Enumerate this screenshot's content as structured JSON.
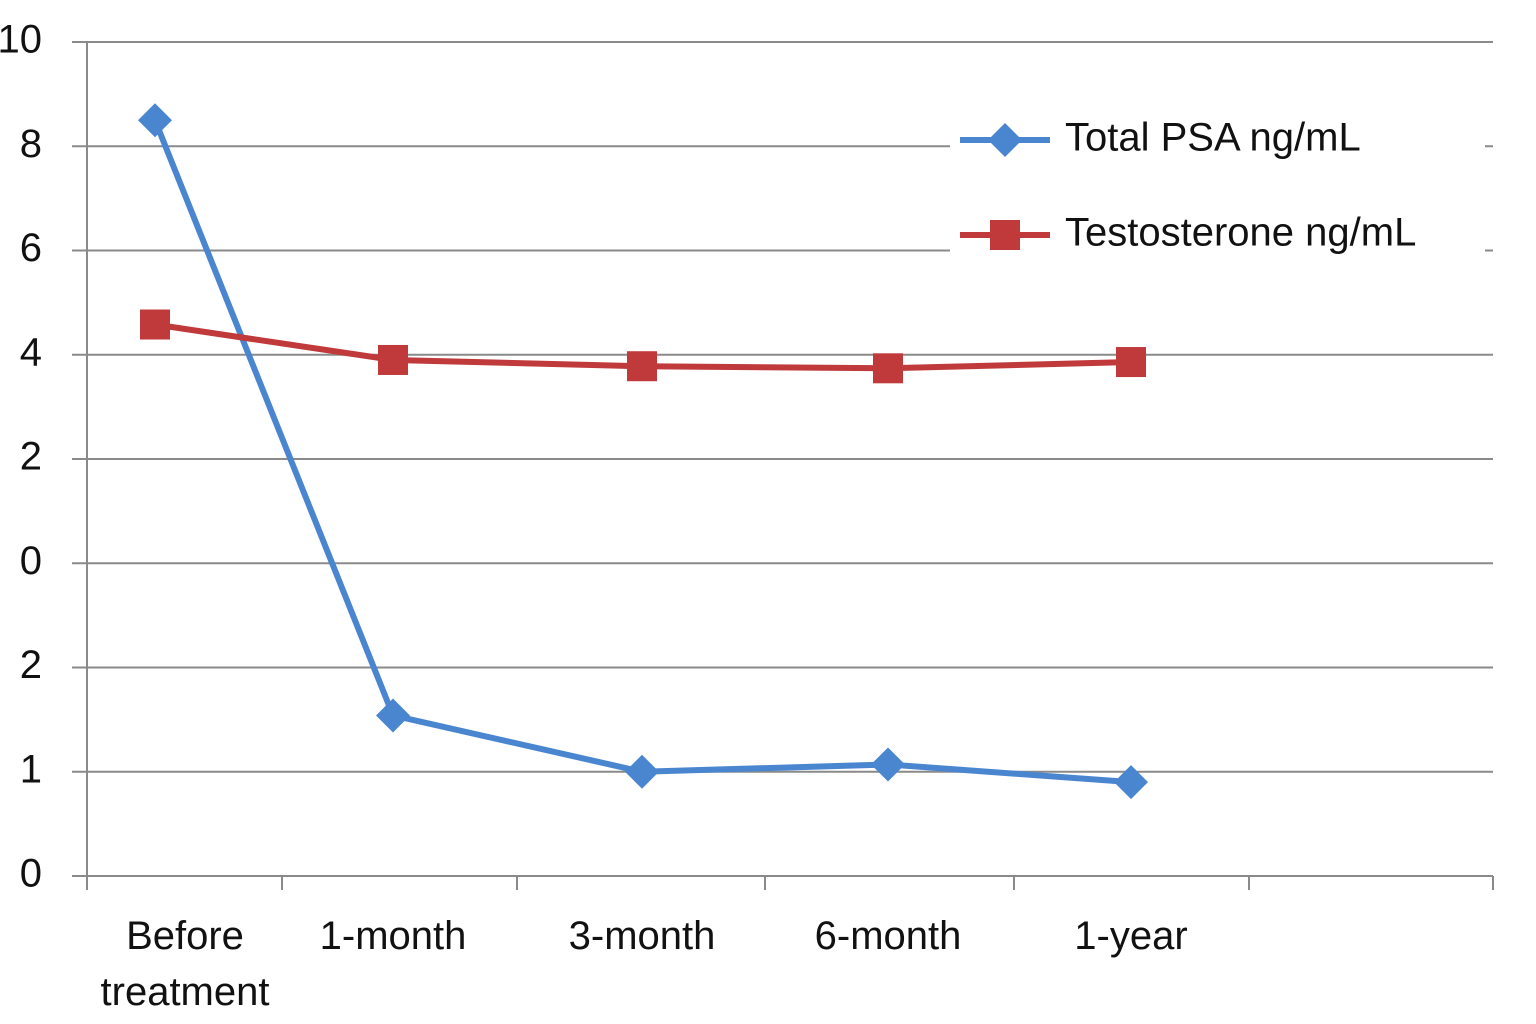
{
  "chart_data": {
    "type": "line",
    "categories": [
      "Before treatment",
      "1-month",
      "3-month",
      "6-month",
      "1-year"
    ],
    "series": [
      {
        "name": "Total PSA ng/mL",
        "color": "#4a86d0",
        "marker": "diamond",
        "values": [
          7.25,
          1.54,
          1.0,
          1.07,
          0.9
        ]
      },
      {
        "name": "Testosterone ng/mL",
        "color": "#c0393b",
        "marker": "square",
        "values": [
          5.29,
          4.95,
          4.89,
          4.87,
          4.93
        ]
      }
    ],
    "ylim": [
      0,
      8
    ],
    "yticks": [
      0,
      1,
      2,
      {
        "value": 3,
        "label": "0"
      },
      {
        "value": 4,
        "label": "2"
      },
      {
        "value": 5,
        "label": "4"
      },
      {
        "value": 6,
        "label": "6"
      },
      {
        "value": 7,
        "label": "8"
      },
      {
        "value": 8,
        "label": "10"
      }
    ],
    "grid": true,
    "legend": "upper right"
  }
}
